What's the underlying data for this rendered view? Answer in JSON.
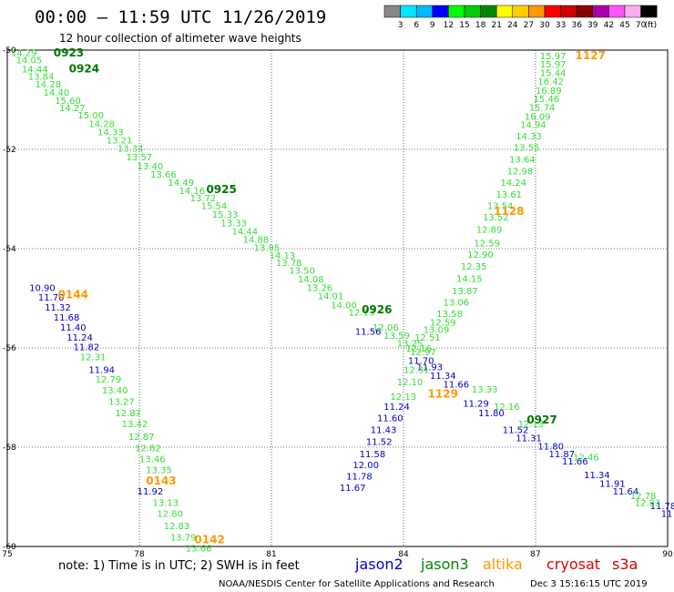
{
  "header": {
    "title": "00:00 — 11:59 UTC 11/26/2019",
    "subtitle": "12 hour collection of altimeter wave heights"
  },
  "colorbar": {
    "labels": [
      "3",
      "6",
      "9",
      "12",
      "15",
      "18",
      "21",
      "24",
      "27",
      "30",
      "33",
      "36",
      "39",
      "42",
      "45",
      "70"
    ],
    "unit": "(ft)",
    "colors": [
      "#888888",
      "#00e8ff",
      "#00b8ff",
      "#0000ff",
      "#00ff00",
      "#00cc00",
      "#008800",
      "#ffff00",
      "#ffcc00",
      "#ff9900",
      "#ff0000",
      "#cc0000",
      "#880000",
      "#aa00aa",
      "#ff55ff",
      "#ffaaee",
      "#000000"
    ]
  },
  "footer": {
    "note": "note:  1) Time is in UTC;  2) SWH is in feet",
    "credit": "NOAA/NESDIS Center for Satellite Applications and Research",
    "timestamp": "Dec  3 15:16:15 UTC 2019"
  },
  "legend": [
    {
      "name": "jason2",
      "color": "#0000cc"
    },
    {
      "name": "jason3",
      "color": "#008800"
    },
    {
      "name": "altika",
      "color": "#ff9900"
    },
    {
      "name": "cryosat",
      "color": "#dd0000"
    },
    {
      "name": "s3a",
      "color": "#cc0000"
    }
  ],
  "chart_data": {
    "type": "scatter",
    "title": "00:00 — 11:59 UTC 11/26/2019",
    "subtitle": "12 hour collection of altimeter wave heights",
    "xlim": [
      75,
      90
    ],
    "ylim": [
      -60,
      -50
    ],
    "x_ticks": [
      "75",
      "78",
      "81",
      "84",
      "87",
      "90"
    ],
    "y_ticks": [
      "-50",
      "-52",
      "-54",
      "-56",
      "-58",
      "-60"
    ],
    "grid": true,
    "grid_x": [
      78,
      81,
      84,
      87
    ],
    "grid_y": [
      -52,
      -54,
      -56,
      -58
    ],
    "color_scale": {
      "green": "#33dd33",
      "blue": "#0000cc",
      "orange": "#ff9900",
      "darkgreen": "#007700"
    },
    "pass_labels": [
      {
        "text": "0923",
        "x": 76.05,
        "y": -50.13,
        "color": "darkgreen"
      },
      {
        "text": "0924",
        "x": 76.4,
        "y": -50.45,
        "color": "darkgreen"
      },
      {
        "text": "0925",
        "x": 79.52,
        "y": -52.88,
        "color": "darkgreen"
      },
      {
        "text": "0926",
        "x": 83.05,
        "y": -55.3,
        "color": "darkgreen"
      },
      {
        "text": "0927",
        "x": 86.8,
        "y": -57.52,
        "color": "darkgreen"
      },
      {
        "text": "1127",
        "x": 87.9,
        "y": -50.18,
        "color": "orange"
      },
      {
        "text": "1128",
        "x": 86.05,
        "y": -53.32,
        "color": "orange"
      },
      {
        "text": "1129",
        "x": 84.55,
        "y": -57.0,
        "color": "orange"
      },
      {
        "text": "0144",
        "x": 76.15,
        "y": -55.0,
        "color": "orange"
      },
      {
        "text": "0143",
        "x": 78.15,
        "y": -58.75,
        "color": "orange"
      },
      {
        "text": "0142",
        "x": 79.25,
        "y": -59.94,
        "color": "orange"
      }
    ],
    "series": [
      {
        "name": "jason3 (pass 0924)",
        "color": "green",
        "points": [
          {
            "x": 75.08,
            "y": -50.12,
            "v": "14.29"
          },
          {
            "x": 75.2,
            "y": -50.27,
            "v": "14.05"
          },
          {
            "x": 75.33,
            "y": -50.45,
            "v": "14.44"
          },
          {
            "x": 75.47,
            "y": -50.6,
            "v": "13.84"
          },
          {
            "x": 75.63,
            "y": -50.75,
            "v": "14.28"
          },
          {
            "x": 75.82,
            "y": -50.92,
            "v": "14.40"
          },
          {
            "x": 76.08,
            "y": -51.08,
            "v": "15.60"
          },
          {
            "x": 76.18,
            "y": -51.23,
            "v": "14.27"
          },
          {
            "x": 76.6,
            "y": -51.38,
            "v": "15.00"
          },
          {
            "x": 76.85,
            "y": -51.55,
            "v": "14.28"
          },
          {
            "x": 77.05,
            "y": -51.72,
            "v": "14.33"
          },
          {
            "x": 77.25,
            "y": -51.88,
            "v": "13.21"
          },
          {
            "x": 77.5,
            "y": -52.05,
            "v": "13.34"
          },
          {
            "x": 77.7,
            "y": -52.22,
            "v": "13.57"
          },
          {
            "x": 77.95,
            "y": -52.4,
            "v": "13.40"
          },
          {
            "x": 78.25,
            "y": -52.57,
            "v": "13.66"
          },
          {
            "x": 78.65,
            "y": -52.73,
            "v": "14.49"
          },
          {
            "x": 78.9,
            "y": -52.9,
            "v": "14.16"
          },
          {
            "x": 79.15,
            "y": -53.05,
            "v": "13.72"
          },
          {
            "x": 79.4,
            "y": -53.2,
            "v": "15.54"
          },
          {
            "x": 79.65,
            "y": -53.38,
            "v": "15.33"
          },
          {
            "x": 79.85,
            "y": -53.55,
            "v": "13.33"
          },
          {
            "x": 80.1,
            "y": -53.72,
            "v": "14.44"
          },
          {
            "x": 80.35,
            "y": -53.88,
            "v": "14.88"
          },
          {
            "x": 80.6,
            "y": -54.05,
            "v": "13.95"
          },
          {
            "x": 80.95,
            "y": -54.2,
            "v": "14.13"
          },
          {
            "x": 81.1,
            "y": -54.35,
            "v": "13.78"
          },
          {
            "x": 81.4,
            "y": -54.5,
            "v": "13.50"
          },
          {
            "x": 81.6,
            "y": -54.68,
            "v": "14.08"
          },
          {
            "x": 81.8,
            "y": -54.85,
            "v": "13.26"
          },
          {
            "x": 82.05,
            "y": -55.02,
            "v": "14.01"
          },
          {
            "x": 82.35,
            "y": -55.2,
            "v": "14.00"
          },
          {
            "x": 82.75,
            "y": -55.35,
            "v": "12.13"
          },
          {
            "x": 83.3,
            "y": -55.65,
            "v": "12.06"
          },
          {
            "x": 83.55,
            "y": -55.82,
            "v": "13.59"
          },
          {
            "x": 83.85,
            "y": -55.97,
            "v": "13.25"
          },
          {
            "x": 84.05,
            "y": -56.07,
            "v": "12.16"
          }
        ]
      },
      {
        "name": "jason2 (pass 0926)",
        "color": "blue",
        "points": [
          {
            "x": 82.9,
            "y": -55.73,
            "v": "11.56"
          },
          {
            "x": 84.1,
            "y": -56.32,
            "v": "11.70"
          },
          {
            "x": 84.3,
            "y": -56.45,
            "v": "11.93"
          },
          {
            "x": 84.6,
            "y": -56.62,
            "v": "11.34"
          },
          {
            "x": 84.9,
            "y": -56.8,
            "v": "11.66"
          },
          {
            "x": 85.35,
            "y": -57.18,
            "v": "11.29"
          },
          {
            "x": 85.7,
            "y": -57.38,
            "v": "11.80"
          },
          {
            "x": 86.25,
            "y": -57.72,
            "v": "11.52"
          },
          {
            "x": 86.55,
            "y": -57.88,
            "v": "11.31"
          },
          {
            "x": 87.05,
            "y": -58.05,
            "v": "11.80"
          },
          {
            "x": 87.3,
            "y": -58.2,
            "v": "11.87"
          },
          {
            "x": 87.6,
            "y": -58.35,
            "v": "11.66"
          },
          {
            "x": 88.1,
            "y": -58.62,
            "v": "11.34"
          },
          {
            "x": 88.45,
            "y": -58.8,
            "v": "11.91"
          },
          {
            "x": 88.75,
            "y": -58.95,
            "v": "11.64"
          },
          {
            "x": 89.6,
            "y": -59.25,
            "v": "11.78"
          },
          {
            "x": 89.85,
            "y": -59.4,
            "v": "11"
          }
        ]
      },
      {
        "name": "jason3 (pass 0927)",
        "color": "green",
        "points": [
          {
            "x": 85.55,
            "y": -56.9,
            "v": "13.33"
          },
          {
            "x": 86.05,
            "y": -57.25,
            "v": "12.16"
          },
          {
            "x": 86.6,
            "y": -57.6,
            "v": "12.13"
          },
          {
            "x": 87.85,
            "y": -58.27,
            "v": "12.46"
          },
          {
            "x": 89.15,
            "y": -59.05,
            "v": "12.78"
          },
          {
            "x": 89.25,
            "y": -59.18,
            "v": "12.83"
          }
        ]
      },
      {
        "name": "jason3 (ascending track)",
        "color": "green",
        "points": [
          {
            "x": 87.1,
            "y": -50.18,
            "v": "15.97"
          },
          {
            "x": 87.1,
            "y": -50.35,
            "v": "15.97"
          },
          {
            "x": 87.1,
            "y": -50.52,
            "v": "15.44"
          },
          {
            "x": 87.05,
            "y": -50.7,
            "v": "16.42"
          },
          {
            "x": 87.0,
            "y": -50.88,
            "v": "16.89"
          },
          {
            "x": 86.95,
            "y": -51.05,
            "v": "15.46"
          },
          {
            "x": 86.85,
            "y": -51.22,
            "v": "15.74"
          },
          {
            "x": 86.75,
            "y": -51.4,
            "v": "16.09"
          },
          {
            "x": 86.65,
            "y": -51.57,
            "v": "14.94"
          },
          {
            "x": 86.55,
            "y": -51.8,
            "v": "14.33"
          },
          {
            "x": 86.5,
            "y": -52.03,
            "v": "13.55"
          },
          {
            "x": 86.4,
            "y": -52.27,
            "v": "13.64"
          },
          {
            "x": 86.35,
            "y": -52.5,
            "v": "12.98"
          },
          {
            "x": 86.2,
            "y": -52.73,
            "v": "14.24"
          },
          {
            "x": 86.1,
            "y": -52.97,
            "v": "13.61"
          },
          {
            "x": 85.9,
            "y": -53.2,
            "v": "13.54"
          },
          {
            "x": 85.8,
            "y": -53.43,
            "v": "13.52"
          },
          {
            "x": 85.65,
            "y": -53.68,
            "v": "12.89"
          },
          {
            "x": 85.6,
            "y": -53.95,
            "v": "12.59"
          },
          {
            "x": 85.45,
            "y": -54.18,
            "v": "12.90"
          },
          {
            "x": 85.3,
            "y": -54.42,
            "v": "12.35"
          },
          {
            "x": 85.2,
            "y": -54.67,
            "v": "14.15"
          },
          {
            "x": 85.1,
            "y": -54.92,
            "v": "13.87"
          },
          {
            "x": 84.9,
            "y": -55.15,
            "v": "13.06"
          },
          {
            "x": 84.75,
            "y": -55.38,
            "v": "13.58"
          },
          {
            "x": 84.6,
            "y": -55.55,
            "v": "12.59"
          },
          {
            "x": 84.45,
            "y": -55.7,
            "v": "13.09"
          },
          {
            "x": 84.25,
            "y": -55.85,
            "v": "12.51"
          },
          {
            "x": 84.15,
            "y": -56.15,
            "v": "12.97"
          },
          {
            "x": 84.0,
            "y": -56.5,
            "v": "12.31"
          },
          {
            "x": 83.85,
            "y": -56.75,
            "v": "12.10"
          },
          {
            "x": 83.7,
            "y": -57.05,
            "v": "12.13"
          }
        ]
      },
      {
        "name": "jason2 (ascending track)",
        "color": "blue",
        "points": [
          {
            "x": 83.55,
            "y": -57.25,
            "v": "11.24"
          },
          {
            "x": 83.4,
            "y": -57.48,
            "v": "11.60"
          },
          {
            "x": 83.25,
            "y": -57.72,
            "v": "11.43"
          },
          {
            "x": 83.15,
            "y": -57.95,
            "v": "11.52"
          },
          {
            "x": 83.0,
            "y": -58.2,
            "v": "11.58"
          },
          {
            "x": 82.85,
            "y": -58.42,
            "v": "12.00"
          },
          {
            "x": 82.7,
            "y": -58.65,
            "v": "11.78"
          },
          {
            "x": 82.55,
            "y": -58.88,
            "v": "11.67"
          }
        ]
      },
      {
        "name": "jason2 (pass 0144)",
        "color": "blue",
        "points": [
          {
            "x": 75.5,
            "y": -54.85,
            "v": "10.90"
          },
          {
            "x": 75.7,
            "y": -55.05,
            "v": "11.70"
          },
          {
            "x": 75.85,
            "y": -55.25,
            "v": "11.32"
          },
          {
            "x": 76.05,
            "y": -55.45,
            "v": "11.68"
          },
          {
            "x": 76.2,
            "y": -55.65,
            "v": "11.40"
          },
          {
            "x": 76.35,
            "y": -55.85,
            "v": "11.24"
          },
          {
            "x": 76.5,
            "y": -56.05,
            "v": "11.82"
          },
          {
            "x": 76.85,
            "y": -56.5,
            "v": "11.94"
          },
          {
            "x": 77.95,
            "y": -58.95,
            "v": "11.92"
          }
        ]
      },
      {
        "name": "jason3 (pass 0144)",
        "color": "green",
        "points": [
          {
            "x": 76.65,
            "y": -56.25,
            "v": "12.31"
          },
          {
            "x": 77.0,
            "y": -56.7,
            "v": "12.79"
          },
          {
            "x": 77.15,
            "y": -56.92,
            "v": "13.40"
          },
          {
            "x": 77.3,
            "y": -57.15,
            "v": "13.27"
          },
          {
            "x": 77.45,
            "y": -57.38,
            "v": "12.87"
          },
          {
            "x": 77.6,
            "y": -57.6,
            "v": "13.42"
          },
          {
            "x": 77.75,
            "y": -57.85,
            "v": "12.87"
          },
          {
            "x": 77.9,
            "y": -58.08,
            "v": "12.82"
          },
          {
            "x": 78.0,
            "y": -58.3,
            "v": "13.46"
          },
          {
            "x": 78.15,
            "y": -58.52,
            "v": "13.35"
          },
          {
            "x": 78.3,
            "y": -59.18,
            "v": "13.13"
          },
          {
            "x": 78.4,
            "y": -59.4,
            "v": "12.80"
          },
          {
            "x": 78.55,
            "y": -59.65,
            "v": "12.83"
          },
          {
            "x": 78.7,
            "y": -59.88,
            "v": "13.79"
          },
          {
            "x": 79.05,
            "y": -60.1,
            "v": "13.66"
          }
        ]
      }
    ]
  }
}
